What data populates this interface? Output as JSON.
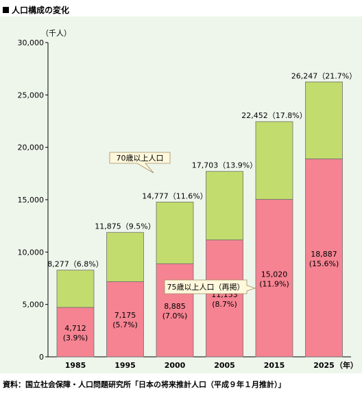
{
  "header": {
    "title": "人口構成の変化"
  },
  "footer": {
    "source": "資料：国立社会保障・人口問題研究所「日本の将来推計人口（平成９年１月推計）」"
  },
  "colors": {
    "green": "#c2dc6e",
    "pink": "#f58392",
    "background": "#eef6ec"
  },
  "chart_data": {
    "type": "bar",
    "stacked": true,
    "title": "人口構成の変化",
    "ylabel": "（千人）",
    "xlabel": "",
    "x_unit_label": "（年）",
    "ylim": [
      0,
      30000
    ],
    "yticks": [
      0,
      5000,
      10000,
      15000,
      20000,
      25000,
      30000
    ],
    "ytick_labels": [
      "0",
      "5,000",
      "10,000",
      "15,000",
      "20,000",
      "25,000",
      "30,000"
    ],
    "categories": [
      "1985",
      "1995",
      "2000",
      "2005",
      "2015",
      "2025"
    ],
    "series": [
      {
        "name": "75歳以上人口（再掲）",
        "values": [
          4712,
          7175,
          8885,
          11153,
          15020,
          18887
        ],
        "labels": [
          "4,712",
          "7,175",
          "8,885",
          "11,153",
          "15,020",
          "18,887"
        ],
        "percent_labels": [
          "(3.9%)",
          "(5.7%)",
          "(7.0%)",
          "(8.7%)",
          "(11.9%)",
          "(15.6%)"
        ]
      },
      {
        "name": "70歳以上人口",
        "totals": [
          8277,
          11875,
          14777,
          17703,
          22452,
          26247
        ],
        "total_labels": [
          "8,277（6.8%）",
          "11,875（9.5%）",
          "14,777（11.6%）",
          "17,703（13.9%）",
          "22,452（17.8%）",
          "26,247（21.7%）"
        ]
      }
    ],
    "grid": false
  }
}
